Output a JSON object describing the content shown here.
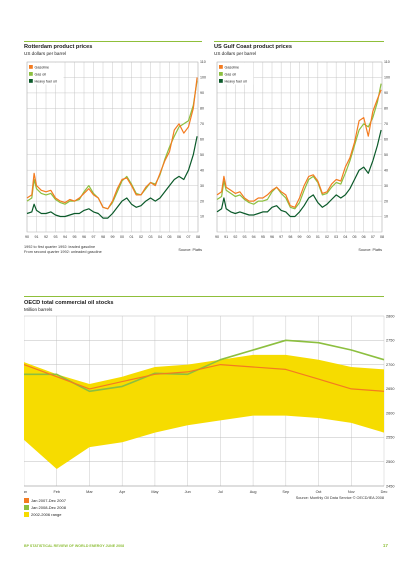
{
  "colors": {
    "gasoline": "#f47b20",
    "gasoil": "#8cbf3f",
    "fuel": "#0b5a2a",
    "range": "#f6dc00",
    "grid": "#bdbdbd",
    "accent": "#8fbf3a"
  },
  "rotterdam": {
    "title": "Rotterdam product prices",
    "subtitle": "US dollars per barrel",
    "note1": "1992 to first quarter 1992: leaded gasoline",
    "note2": "From second quarter 1992: unleaded gasoline",
    "source": "Source: Platts"
  },
  "gulf": {
    "title": "US Gulf Coast product prices",
    "subtitle": "US dollars per barrel",
    "source": "Source: Platts"
  },
  "oecd": {
    "title": "OECD total commercial oil stocks",
    "subtitle": "Million barrels",
    "source": "Source: Monthly Oil Data Service © OECD/IEA 2008"
  },
  "footer": {
    "left": "BP STATISTICAL REVIEW OF WORLD ENERGY JUNE 2008",
    "page": "17"
  },
  "chart_data": [
    {
      "type": "line",
      "title": "Rotterdam product prices",
      "ylabel": "US dollars per barrel",
      "x_ticks": [
        "90",
        "91",
        "92",
        "93",
        "94",
        "95",
        "96",
        "97",
        "98",
        "99",
        "00",
        "01",
        "02",
        "03",
        "04",
        "05",
        "06",
        "07",
        "08"
      ],
      "y_ticks": [
        10,
        20,
        30,
        40,
        50,
        60,
        70,
        80,
        90,
        100,
        110
      ],
      "ylim": [
        0,
        110
      ],
      "xlim": [
        1990,
        2008
      ],
      "grid": true,
      "legend": "top-left",
      "series": [
        {
          "name": "Gasoline",
          "color": "gasoline",
          "x": [
            1990,
            1990.5,
            1990.75,
            1991,
            1991.5,
            1992,
            1992.5,
            1993,
            1993.5,
            1994,
            1994.5,
            1995,
            1995.5,
            1996,
            1996.5,
            1997,
            1997.5,
            1998,
            1998.5,
            1999,
            1999.5,
            2000,
            2000.5,
            2001,
            2001.5,
            2002,
            2002.5,
            2003,
            2003.5,
            2004,
            2004.5,
            2005,
            2005.5,
            2006,
            2006.5,
            2007,
            2007.5,
            2007.9
          ],
          "y": [
            22,
            24,
            38,
            30,
            27,
            26,
            27,
            22,
            20,
            19,
            21,
            20,
            22,
            25,
            28,
            24,
            22,
            16,
            15,
            20,
            28,
            34,
            35,
            30,
            24,
            24,
            29,
            32,
            30,
            38,
            46,
            52,
            66,
            70,
            64,
            68,
            80,
            100
          ]
        },
        {
          "name": "Gas oil",
          "color": "gasoil",
          "x": [
            1990,
            1990.5,
            1990.75,
            1991,
            1991.5,
            1992,
            1992.5,
            1993,
            1993.5,
            1994,
            1994.5,
            1995,
            1995.5,
            1996,
            1996.5,
            1997,
            1997.5,
            1998,
            1998.5,
            1999,
            1999.5,
            2000,
            2000.5,
            2001,
            2001.5,
            2002,
            2002.5,
            2003,
            2003.5,
            2004,
            2004.5,
            2005,
            2005.5,
            2006,
            2006.5,
            2007,
            2007.5,
            2007.9
          ],
          "y": [
            20,
            22,
            34,
            28,
            25,
            24,
            25,
            21,
            19,
            18,
            20,
            20,
            21,
            26,
            30,
            25,
            22,
            16,
            15,
            19,
            26,
            33,
            36,
            31,
            25,
            24,
            28,
            32,
            31,
            37,
            47,
            55,
            62,
            68,
            70,
            72,
            82,
            98
          ]
        },
        {
          "name": "Heavy fuel oil",
          "color": "fuel",
          "x": [
            1990,
            1990.5,
            1990.75,
            1991,
            1991.5,
            1992,
            1992.5,
            1993,
            1993.5,
            1994,
            1994.5,
            1995,
            1995.5,
            1996,
            1996.5,
            1997,
            1997.5,
            1998,
            1998.5,
            1999,
            1999.5,
            2000,
            2000.5,
            2001,
            2001.5,
            2002,
            2002.5,
            2003,
            2003.5,
            2004,
            2004.5,
            2005,
            2005.5,
            2006,
            2006.5,
            2007,
            2007.5,
            2007.9
          ],
          "y": [
            12,
            13,
            18,
            14,
            12,
            12,
            13,
            11,
            10,
            10,
            11,
            12,
            12,
            14,
            15,
            13,
            12,
            9,
            9,
            12,
            16,
            20,
            22,
            18,
            16,
            17,
            20,
            22,
            20,
            22,
            26,
            30,
            34,
            36,
            34,
            40,
            50,
            62
          ]
        }
      ]
    },
    {
      "type": "line",
      "title": "US Gulf Coast product prices",
      "ylabel": "US dollars per barrel",
      "x_ticks": [
        "90",
        "91",
        "92",
        "93",
        "94",
        "95",
        "96",
        "97",
        "98",
        "99",
        "00",
        "01",
        "02",
        "03",
        "04",
        "05",
        "06",
        "07",
        "08"
      ],
      "y_ticks": [
        10,
        20,
        30,
        40,
        50,
        60,
        70,
        80,
        90,
        100,
        110
      ],
      "ylim": [
        0,
        110
      ],
      "xlim": [
        1990,
        2008
      ],
      "grid": true,
      "legend": "top-left",
      "series": [
        {
          "name": "Gasoline",
          "color": "gasoline",
          "x": [
            1990,
            1990.5,
            1990.75,
            1991,
            1991.5,
            1992,
            1992.5,
            1993,
            1993.5,
            1994,
            1994.5,
            1995,
            1995.5,
            1996,
            1996.5,
            1997,
            1997.5,
            1998,
            1998.5,
            1999,
            1999.5,
            2000,
            2000.5,
            2001,
            2001.5,
            2002,
            2002.5,
            2003,
            2003.5,
            2004,
            2004.5,
            2005,
            2005.5,
            2006,
            2006.5,
            2007,
            2007.5,
            2007.9
          ],
          "y": [
            24,
            26,
            36,
            29,
            27,
            25,
            26,
            22,
            20,
            20,
            22,
            22,
            24,
            27,
            29,
            26,
            24,
            17,
            16,
            22,
            30,
            36,
            37,
            33,
            25,
            26,
            31,
            34,
            33,
            42,
            48,
            58,
            72,
            74,
            62,
            78,
            86,
            92
          ]
        },
        {
          "name": "Gas oil",
          "color": "gasoil",
          "x": [
            1990,
            1990.5,
            1990.75,
            1991,
            1991.5,
            1992,
            1992.5,
            1993,
            1993.5,
            1994,
            1994.5,
            1995,
            1995.5,
            1996,
            1996.5,
            1997,
            1997.5,
            1998,
            1998.5,
            1999,
            1999.5,
            2000,
            2000.5,
            2001,
            2001.5,
            2002,
            2002.5,
            2003,
            2003.5,
            2004,
            2004.5,
            2005,
            2005.5,
            2006,
            2006.5,
            2007,
            2007.5,
            2007.9
          ],
          "y": [
            21,
            23,
            33,
            27,
            25,
            23,
            24,
            21,
            19,
            18,
            20,
            20,
            21,
            26,
            29,
            25,
            22,
            16,
            15,
            19,
            27,
            34,
            36,
            32,
            24,
            25,
            29,
            32,
            31,
            38,
            46,
            56,
            66,
            70,
            68,
            74,
            84,
            96
          ]
        },
        {
          "name": "Heavy fuel oil",
          "color": "fuel",
          "x": [
            1990,
            1990.5,
            1990.75,
            1991,
            1991.5,
            1992,
            1992.5,
            1993,
            1993.5,
            1994,
            1994.5,
            1995,
            1995.5,
            1996,
            1996.5,
            1997,
            1997.5,
            1998,
            1998.5,
            1999,
            1999.5,
            2000,
            2000.5,
            2001,
            2001.5,
            2002,
            2002.5,
            2003,
            2003.5,
            2004,
            2004.5,
            2005,
            2005.5,
            2006,
            2006.5,
            2007,
            2007.5,
            2007.9
          ],
          "y": [
            13,
            15,
            22,
            15,
            13,
            12,
            13,
            12,
            11,
            11,
            12,
            13,
            13,
            16,
            17,
            14,
            13,
            10,
            10,
            13,
            17,
            22,
            24,
            19,
            16,
            18,
            21,
            24,
            22,
            24,
            28,
            34,
            40,
            42,
            38,
            46,
            56,
            66
          ]
        }
      ]
    },
    {
      "type": "area",
      "title": "OECD total commercial oil stocks",
      "ylabel": "Million barrels",
      "categories": [
        "Jan",
        "Feb",
        "Mar",
        "Apr",
        "May",
        "Jun",
        "Jul",
        "Aug",
        "Sep",
        "Oct",
        "Nov",
        "Dec"
      ],
      "y_ticks": [
        2450,
        2500,
        2550,
        2600,
        2650,
        2700,
        2750,
        2800
      ],
      "ylim": [
        2450,
        2800
      ],
      "grid": true,
      "series": [
        {
          "name": "Jan 2007-Dec 2007",
          "color": "gasoline",
          "values": [
            2700,
            2675,
            2650,
            2665,
            2680,
            2685,
            2700,
            2695,
            2690,
            2670,
            2650,
            2645
          ]
        },
        {
          "name": "Jan 2008-Dec 2008",
          "color": "gasoil",
          "values": [
            2680,
            2680,
            2645,
            2655,
            2682,
            2680,
            2710,
            2730,
            2750,
            2745,
            2730,
            2710
          ]
        },
        {
          "name": "2002-2006 range",
          "color": "range",
          "low": [
            2545,
            2485,
            2530,
            2540,
            2560,
            2575,
            2585,
            2595,
            2595,
            2590,
            2580,
            2560
          ],
          "high": [
            2705,
            2680,
            2660,
            2675,
            2695,
            2700,
            2710,
            2720,
            2720,
            2710,
            2695,
            2690
          ]
        }
      ]
    }
  ]
}
